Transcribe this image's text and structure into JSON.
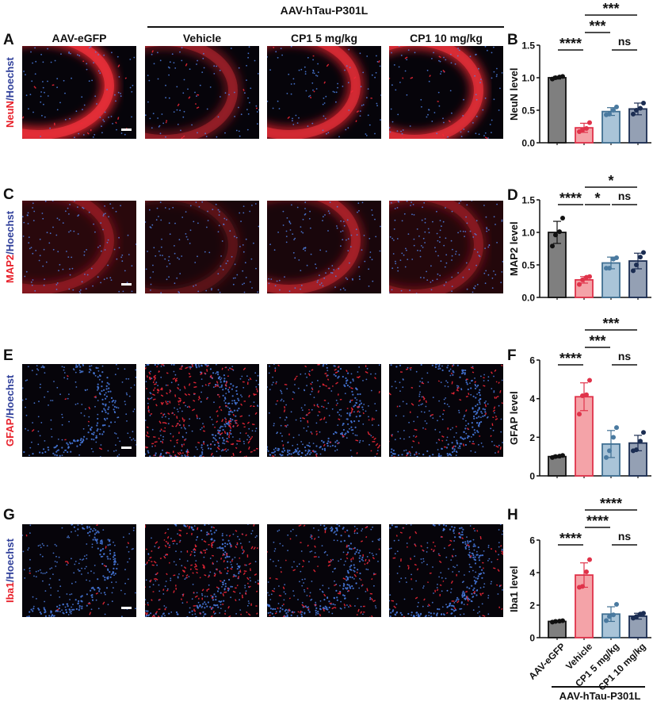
{
  "header": {
    "group_label": "AAV-hTau-P301L",
    "columns": [
      "AAV-eGFP",
      "Vehicle",
      "CP1 5 mg/kg",
      "CP1 10 mg/kg"
    ]
  },
  "panels": [
    {
      "letter": "A",
      "marker": "NeuN",
      "counterstain": "Hoechst"
    },
    {
      "letter": "C",
      "marker": "MAP2",
      "counterstain": "Hoechst"
    },
    {
      "letter": "E",
      "marker": "GFAP",
      "counterstain": "Hoechst"
    },
    {
      "letter": "G",
      "marker": "Iba1",
      "counterstain": "Hoechst"
    }
  ],
  "colors": {
    "eGFP_bar": "#7f7f7f",
    "vehicle_bar": "#f4a3a8",
    "vehicle_edge": "#e0334a",
    "cp1_5_bar": "#a9c4d8",
    "cp1_5_edge": "#3f6f92",
    "cp1_10_bar": "#94a0b4",
    "cp1_10_edge": "#1b2d52",
    "marker_red": "#e8202a",
    "hoechst_blue": "#2f3f9a"
  },
  "xaxis": {
    "tick_labels": [
      "AAV-eGFP",
      "Vehicle",
      "CP1 5 mg/kg",
      "CP1 10 mg/kg"
    ],
    "group_label": "AAV-hTau-P301L"
  },
  "chart_data": [
    {
      "letter": "B",
      "type": "bar",
      "title": "",
      "xlabel": "",
      "ylabel": "NeuN level",
      "categories": [
        "AAV-eGFP",
        "Vehicle",
        "CP1 5 mg/kg",
        "CP1 10 mg/kg"
      ],
      "values": [
        1.0,
        0.23,
        0.48,
        0.52
      ],
      "errors": [
        0.02,
        0.07,
        0.06,
        0.09
      ],
      "points": [
        [
          0.98,
          1.0,
          1.01,
          1.02
        ],
        [
          0.17,
          0.2,
          0.22,
          0.31
        ],
        [
          0.43,
          0.44,
          0.5,
          0.55
        ],
        [
          0.44,
          0.5,
          0.53,
          0.61
        ]
      ],
      "ylim": [
        0,
        1.5
      ],
      "yticks": [
        "0.0",
        "0.5",
        "1.0",
        "1.5"
      ],
      "significance": [
        {
          "from": 0,
          "to": 1,
          "label": "****",
          "level": 0
        },
        {
          "from": 2,
          "to": 3,
          "label": "ns",
          "level": 0
        },
        {
          "from": 1,
          "to": 2,
          "label": "***",
          "level": 1
        },
        {
          "from": 1,
          "to": 3,
          "label": "***",
          "level": 2
        }
      ]
    },
    {
      "letter": "D",
      "type": "bar",
      "title": "",
      "xlabel": "",
      "ylabel": "MAP2 level",
      "categories": [
        "AAV-eGFP",
        "Vehicle",
        "CP1 5 mg/kg",
        "CP1 10 mg/kg"
      ],
      "values": [
        1.0,
        0.27,
        0.53,
        0.56
      ],
      "errors": [
        0.17,
        0.05,
        0.09,
        0.12
      ],
      "points": [
        [
          0.79,
          0.96,
          1.01,
          1.22
        ],
        [
          0.2,
          0.27,
          0.31,
          0.32
        ],
        [
          0.45,
          0.45,
          0.59,
          0.61
        ],
        [
          0.41,
          0.5,
          0.62,
          0.69
        ]
      ],
      "ylim": [
        0,
        1.5
      ],
      "yticks": [
        "0.0",
        "0.5",
        "1.0",
        "1.5"
      ],
      "significance": [
        {
          "from": 0,
          "to": 1,
          "label": "****",
          "level": 0
        },
        {
          "from": 1,
          "to": 2,
          "label": "*",
          "level": 0
        },
        {
          "from": 2,
          "to": 3,
          "label": "ns",
          "level": 0
        },
        {
          "from": 1,
          "to": 3,
          "label": "*",
          "level": 1
        }
      ]
    },
    {
      "letter": "F",
      "type": "bar",
      "title": "",
      "xlabel": "",
      "ylabel": "GFAP level",
      "categories": [
        "AAV-eGFP",
        "Vehicle",
        "CP1 5 mg/kg",
        "CP1 10 mg/kg"
      ],
      "values": [
        1.0,
        4.1,
        1.65,
        1.7
      ],
      "errors": [
        0.06,
        0.72,
        0.7,
        0.4
      ],
      "points": [
        [
          0.95,
          1.0,
          1.02,
          1.06
        ],
        [
          3.2,
          4.15,
          4.2,
          4.95
        ],
        [
          0.95,
          1.3,
          2.0,
          2.5
        ],
        [
          1.3,
          1.35,
          1.8,
          2.25
        ]
      ],
      "ylim": [
        0,
        6
      ],
      "yticks": [
        "0",
        "2",
        "4",
        "6"
      ],
      "significance": [
        {
          "from": 0,
          "to": 1,
          "label": "****",
          "level": 0
        },
        {
          "from": 2,
          "to": 3,
          "label": "ns",
          "level": 0
        },
        {
          "from": 1,
          "to": 2,
          "label": "***",
          "level": 1
        },
        {
          "from": 1,
          "to": 3,
          "label": "***",
          "level": 2
        }
      ]
    },
    {
      "letter": "H",
      "type": "bar",
      "title": "",
      "xlabel": "",
      "ylabel": "Iba1 level",
      "categories": [
        "AAV-eGFP",
        "Vehicle",
        "CP1 5 mg/kg",
        "CP1 10 mg/kg"
      ],
      "values": [
        1.0,
        3.85,
        1.45,
        1.32
      ],
      "errors": [
        0.05,
        0.75,
        0.45,
        0.18
      ],
      "points": [
        [
          0.96,
          1.0,
          1.02,
          1.04
        ],
        [
          3.1,
          3.15,
          4.05,
          4.8
        ],
        [
          1.05,
          1.3,
          1.4,
          2.05
        ],
        [
          1.2,
          1.3,
          1.45,
          1.5
        ]
      ],
      "ylim": [
        0,
        6
      ],
      "yticks": [
        "0",
        "2",
        "4",
        "6"
      ],
      "significance": [
        {
          "from": 0,
          "to": 1,
          "label": "****",
          "level": 0
        },
        {
          "from": 2,
          "to": 3,
          "label": "ns",
          "level": 0
        },
        {
          "from": 1,
          "to": 2,
          "label": "****",
          "level": 1
        },
        {
          "from": 1,
          "to": 3,
          "label": "****",
          "level": 2
        }
      ]
    }
  ]
}
